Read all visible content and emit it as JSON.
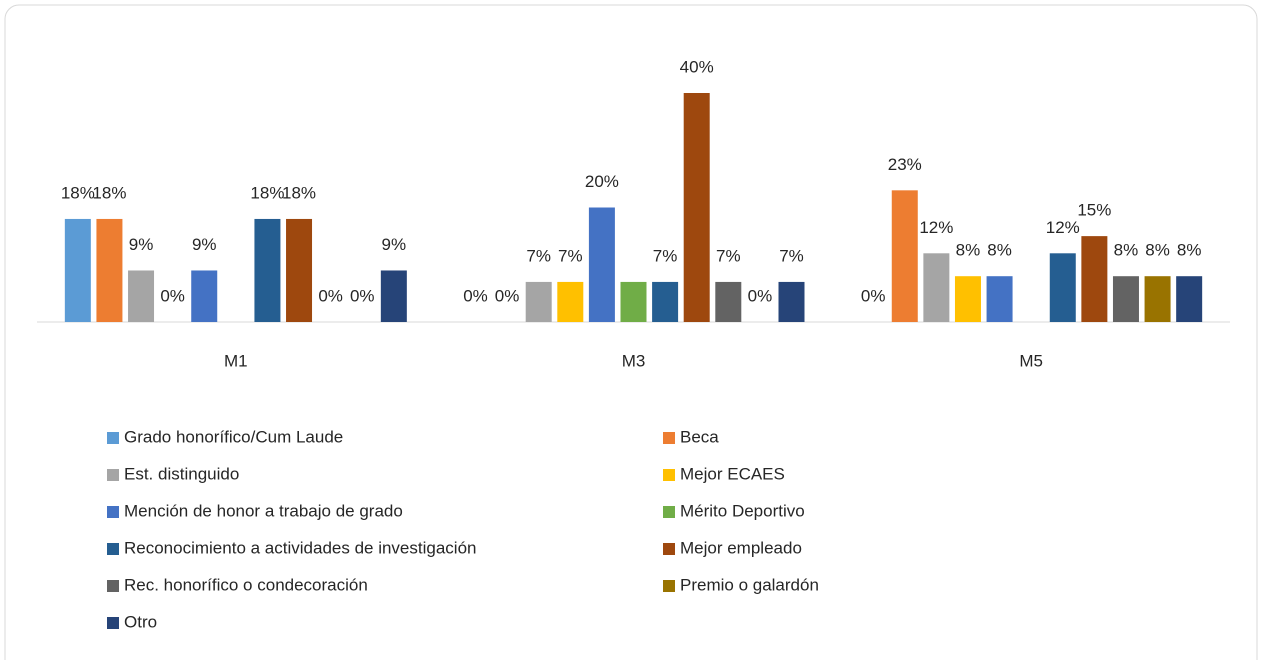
{
  "chart_data": {
    "type": "bar",
    "categories": [
      "M1",
      "M3",
      "M5"
    ],
    "series": [
      {
        "name": "Grado honorífico/Cum Laude",
        "color": "#5b9bd5",
        "values": [
          18,
          0,
          0
        ],
        "value_labels": [
          "18%",
          "0%",
          "0%"
        ]
      },
      {
        "name": "Beca",
        "color": "#ed7d31",
        "values": [
          18,
          0,
          23
        ],
        "value_labels": [
          "18%",
          "0%",
          "23%"
        ]
      },
      {
        "name": "Est. distinguido",
        "color": "#a5a5a5",
        "values": [
          9,
          7,
          12
        ],
        "value_labels": [
          "9%",
          "7%",
          "12%"
        ]
      },
      {
        "name": "Mejor ECAES",
        "color": "#ffc000",
        "values": [
          0,
          7,
          8
        ],
        "value_labels": [
          "0%",
          "7%",
          "8%"
        ]
      },
      {
        "name": "Mención de honor a trabajo de grado",
        "color": "#4472c4",
        "values": [
          9,
          20,
          8
        ],
        "value_labels": [
          "9%",
          "20%",
          "8%"
        ]
      },
      {
        "name": "Mérito Deportivo",
        "color": "#70ad47",
        "values": [
          null,
          7,
          null
        ],
        "value_labels": [
          null,
          null,
          null
        ]
      },
      {
        "name": "Reconocimiento a actividades de investigación",
        "color": "#255e91",
        "values": [
          18,
          7,
          12
        ],
        "value_labels": [
          "18%",
          "7%",
          "12%"
        ]
      },
      {
        "name": "Mejor empleado",
        "color": "#9e480e",
        "values": [
          18,
          40,
          15
        ],
        "value_labels": [
          "18%",
          "40%",
          "15%"
        ]
      },
      {
        "name": "Rec. honorífico o condecoración",
        "color": "#636363",
        "values": [
          0,
          7,
          8
        ],
        "value_labels": [
          "0%",
          "7%",
          "8%"
        ]
      },
      {
        "name": "Premio o galardón",
        "color": "#997300",
        "values": [
          0,
          0,
          8
        ],
        "value_labels": [
          "0%",
          "0%",
          "8%"
        ]
      },
      {
        "name": "Otro",
        "color": "#264478",
        "values": [
          9,
          7,
          8
        ],
        "value_labels": [
          "9%",
          "7%",
          "8%"
        ]
      }
    ],
    "legend": "bottom"
  }
}
